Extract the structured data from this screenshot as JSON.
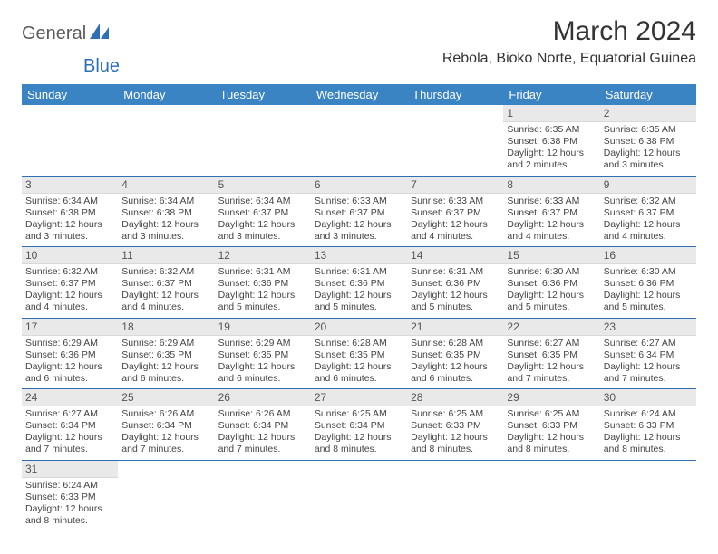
{
  "logo": {
    "part1": "General",
    "part2": "Blue"
  },
  "title": "March 2024",
  "location": "Rebola, Bioko Norte, Equatorial Guinea",
  "colors": {
    "header_bg": "#3b84c4",
    "header_text": "#ffffff",
    "row_divider": "#2e6fb5",
    "daynum_bg": "#e9e9e9",
    "body_text": "#444444",
    "logo_gray": "#5a5a5a",
    "logo_blue": "#2e6fb5"
  },
  "weekdays": [
    "Sunday",
    "Monday",
    "Tuesday",
    "Wednesday",
    "Thursday",
    "Friday",
    "Saturday"
  ],
  "weeks": [
    [
      null,
      null,
      null,
      null,
      null,
      {
        "n": "1",
        "sr": "Sunrise: 6:35 AM",
        "ss": "Sunset: 6:38 PM",
        "dl": "Daylight: 12 hours and 2 minutes."
      },
      {
        "n": "2",
        "sr": "Sunrise: 6:35 AM",
        "ss": "Sunset: 6:38 PM",
        "dl": "Daylight: 12 hours and 3 minutes."
      }
    ],
    [
      {
        "n": "3",
        "sr": "Sunrise: 6:34 AM",
        "ss": "Sunset: 6:38 PM",
        "dl": "Daylight: 12 hours and 3 minutes."
      },
      {
        "n": "4",
        "sr": "Sunrise: 6:34 AM",
        "ss": "Sunset: 6:38 PM",
        "dl": "Daylight: 12 hours and 3 minutes."
      },
      {
        "n": "5",
        "sr": "Sunrise: 6:34 AM",
        "ss": "Sunset: 6:37 PM",
        "dl": "Daylight: 12 hours and 3 minutes."
      },
      {
        "n": "6",
        "sr": "Sunrise: 6:33 AM",
        "ss": "Sunset: 6:37 PM",
        "dl": "Daylight: 12 hours and 3 minutes."
      },
      {
        "n": "7",
        "sr": "Sunrise: 6:33 AM",
        "ss": "Sunset: 6:37 PM",
        "dl": "Daylight: 12 hours and 4 minutes."
      },
      {
        "n": "8",
        "sr": "Sunrise: 6:33 AM",
        "ss": "Sunset: 6:37 PM",
        "dl": "Daylight: 12 hours and 4 minutes."
      },
      {
        "n": "9",
        "sr": "Sunrise: 6:32 AM",
        "ss": "Sunset: 6:37 PM",
        "dl": "Daylight: 12 hours and 4 minutes."
      }
    ],
    [
      {
        "n": "10",
        "sr": "Sunrise: 6:32 AM",
        "ss": "Sunset: 6:37 PM",
        "dl": "Daylight: 12 hours and 4 minutes."
      },
      {
        "n": "11",
        "sr": "Sunrise: 6:32 AM",
        "ss": "Sunset: 6:37 PM",
        "dl": "Daylight: 12 hours and 4 minutes."
      },
      {
        "n": "12",
        "sr": "Sunrise: 6:31 AM",
        "ss": "Sunset: 6:36 PM",
        "dl": "Daylight: 12 hours and 5 minutes."
      },
      {
        "n": "13",
        "sr": "Sunrise: 6:31 AM",
        "ss": "Sunset: 6:36 PM",
        "dl": "Daylight: 12 hours and 5 minutes."
      },
      {
        "n": "14",
        "sr": "Sunrise: 6:31 AM",
        "ss": "Sunset: 6:36 PM",
        "dl": "Daylight: 12 hours and 5 minutes."
      },
      {
        "n": "15",
        "sr": "Sunrise: 6:30 AM",
        "ss": "Sunset: 6:36 PM",
        "dl": "Daylight: 12 hours and 5 minutes."
      },
      {
        "n": "16",
        "sr": "Sunrise: 6:30 AM",
        "ss": "Sunset: 6:36 PM",
        "dl": "Daylight: 12 hours and 5 minutes."
      }
    ],
    [
      {
        "n": "17",
        "sr": "Sunrise: 6:29 AM",
        "ss": "Sunset: 6:36 PM",
        "dl": "Daylight: 12 hours and 6 minutes."
      },
      {
        "n": "18",
        "sr": "Sunrise: 6:29 AM",
        "ss": "Sunset: 6:35 PM",
        "dl": "Daylight: 12 hours and 6 minutes."
      },
      {
        "n": "19",
        "sr": "Sunrise: 6:29 AM",
        "ss": "Sunset: 6:35 PM",
        "dl": "Daylight: 12 hours and 6 minutes."
      },
      {
        "n": "20",
        "sr": "Sunrise: 6:28 AM",
        "ss": "Sunset: 6:35 PM",
        "dl": "Daylight: 12 hours and 6 minutes."
      },
      {
        "n": "21",
        "sr": "Sunrise: 6:28 AM",
        "ss": "Sunset: 6:35 PM",
        "dl": "Daylight: 12 hours and 6 minutes."
      },
      {
        "n": "22",
        "sr": "Sunrise: 6:27 AM",
        "ss": "Sunset: 6:35 PM",
        "dl": "Daylight: 12 hours and 7 minutes."
      },
      {
        "n": "23",
        "sr": "Sunrise: 6:27 AM",
        "ss": "Sunset: 6:34 PM",
        "dl": "Daylight: 12 hours and 7 minutes."
      }
    ],
    [
      {
        "n": "24",
        "sr": "Sunrise: 6:27 AM",
        "ss": "Sunset: 6:34 PM",
        "dl": "Daylight: 12 hours and 7 minutes."
      },
      {
        "n": "25",
        "sr": "Sunrise: 6:26 AM",
        "ss": "Sunset: 6:34 PM",
        "dl": "Daylight: 12 hours and 7 minutes."
      },
      {
        "n": "26",
        "sr": "Sunrise: 6:26 AM",
        "ss": "Sunset: 6:34 PM",
        "dl": "Daylight: 12 hours and 7 minutes."
      },
      {
        "n": "27",
        "sr": "Sunrise: 6:25 AM",
        "ss": "Sunset: 6:34 PM",
        "dl": "Daylight: 12 hours and 8 minutes."
      },
      {
        "n": "28",
        "sr": "Sunrise: 6:25 AM",
        "ss": "Sunset: 6:33 PM",
        "dl": "Daylight: 12 hours and 8 minutes."
      },
      {
        "n": "29",
        "sr": "Sunrise: 6:25 AM",
        "ss": "Sunset: 6:33 PM",
        "dl": "Daylight: 12 hours and 8 minutes."
      },
      {
        "n": "30",
        "sr": "Sunrise: 6:24 AM",
        "ss": "Sunset: 6:33 PM",
        "dl": "Daylight: 12 hours and 8 minutes."
      }
    ],
    [
      {
        "n": "31",
        "sr": "Sunrise: 6:24 AM",
        "ss": "Sunset: 6:33 PM",
        "dl": "Daylight: 12 hours and 8 minutes."
      },
      null,
      null,
      null,
      null,
      null,
      null
    ]
  ]
}
